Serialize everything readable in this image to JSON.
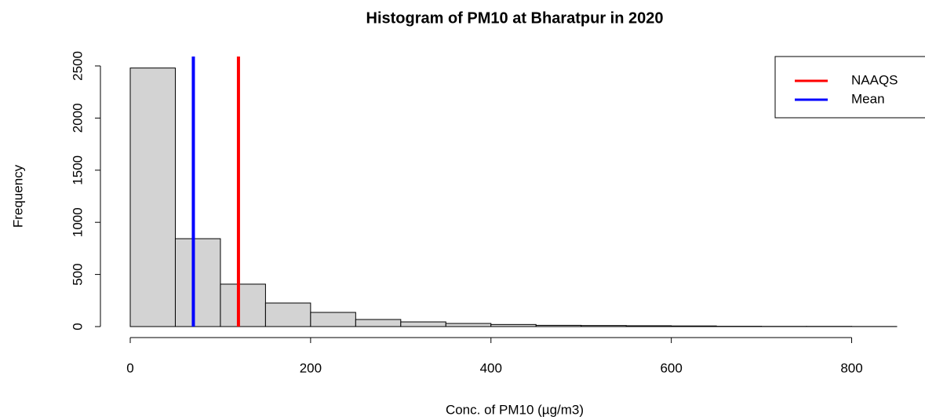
{
  "chart_data": {
    "type": "histogram",
    "title": "Histogram of PM10 at Bharatpur in 2020",
    "xlabel": "Conc. of PM10 (µg/m3)",
    "ylabel": "Frequency",
    "bins": [
      0,
      50,
      100,
      150,
      200,
      250,
      300,
      350,
      400,
      450,
      500,
      550,
      600,
      650,
      700,
      750,
      800,
      850
    ],
    "values": [
      2480,
      843,
      407,
      226,
      136,
      68,
      45,
      30,
      20,
      12,
      10,
      8,
      6,
      3,
      2,
      2,
      1
    ],
    "color": "#d3d3d3",
    "xlim": [
      0,
      850
    ],
    "ylim": [
      0,
      2600
    ],
    "xticks": [
      0,
      200,
      400,
      600,
      800
    ],
    "yticks": [
      0,
      500,
      1000,
      1500,
      2000,
      2500
    ],
    "lines": [
      {
        "name": "NAAQS",
        "value": 120,
        "color": "#ff0000"
      },
      {
        "name": "Mean",
        "value": 70,
        "color": "#0000ff"
      }
    ],
    "legend": "top-right"
  }
}
